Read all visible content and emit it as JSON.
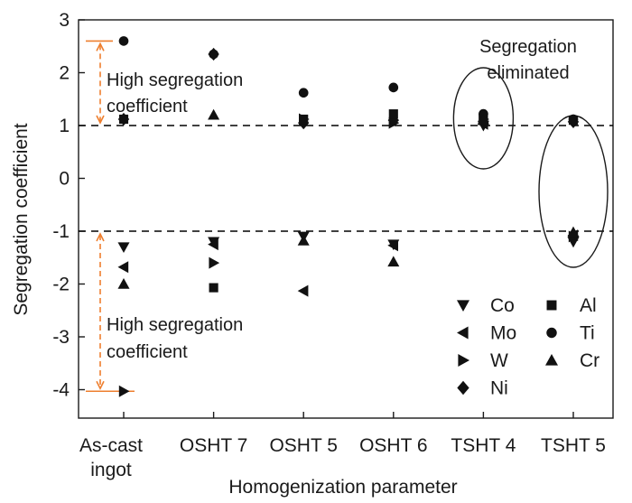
{
  "chart_data": {
    "type": "scatter",
    "xlabel": "Homogenization parameter",
    "ylabel": "Segregation coefficient",
    "ylim": [
      -4.4,
      3.0
    ],
    "yticks": [
      3,
      2,
      1,
      0,
      -1,
      -2,
      -3,
      -4
    ],
    "categories": [
      [
        "As-cast",
        "ingot"
      ],
      [
        "OSHT 7"
      ],
      [
        "OSHT 5"
      ],
      [
        "OSHT 6"
      ],
      [
        "TSHT 4"
      ],
      [
        "TSHT 5"
      ]
    ],
    "reference_lines": [
      1,
      -1
    ],
    "series": [
      {
        "name": "Co",
        "marker": "triangle-down",
        "values": [
          -1.3,
          -1.2,
          -1.1,
          -1.25,
          1.0,
          -1.2
        ]
      },
      {
        "name": "Mo",
        "marker": "triangle-left",
        "values": [
          -1.68,
          -1.25,
          -2.13,
          -1.27,
          1.03,
          -1.08
        ]
      },
      {
        "name": "W",
        "marker": "triangle-right",
        "values": [
          -4.03,
          -1.6,
          1.12,
          1.05,
          1.12,
          -1.1
        ]
      },
      {
        "name": "Ni",
        "marker": "diamond",
        "values": [
          1.12,
          2.35,
          1.05,
          1.1,
          1.05,
          1.07
        ]
      },
      {
        "name": "Al",
        "marker": "square",
        "values": [
          1.12,
          -2.07,
          1.12,
          1.22,
          1.12,
          1.1
        ]
      },
      {
        "name": "Ti",
        "marker": "circle",
        "values": [
          2.6,
          2.35,
          1.62,
          1.72,
          1.22,
          1.12
        ]
      },
      {
        "name": "Cr",
        "marker": "triangle-up",
        "values": [
          -2.0,
          1.2,
          -1.18,
          -1.58,
          1.1,
          -1.02
        ]
      }
    ],
    "legend": {
      "placement": "bottom-right",
      "left_column": [
        "Co",
        "Mo",
        "W",
        "Ni"
      ],
      "right_column": [
        "Al",
        "Ti",
        "Cr"
      ]
    },
    "annotations": {
      "top_left": [
        "High segregation",
        "coefficient"
      ],
      "bottom_left": [
        "High segregation",
        "coefficient"
      ],
      "top_right": [
        "Segregation",
        "eliminated"
      ]
    },
    "colors": {
      "markers": "#111111",
      "arrows": "#ee7f2f",
      "dashed_lines": "#000000"
    }
  }
}
